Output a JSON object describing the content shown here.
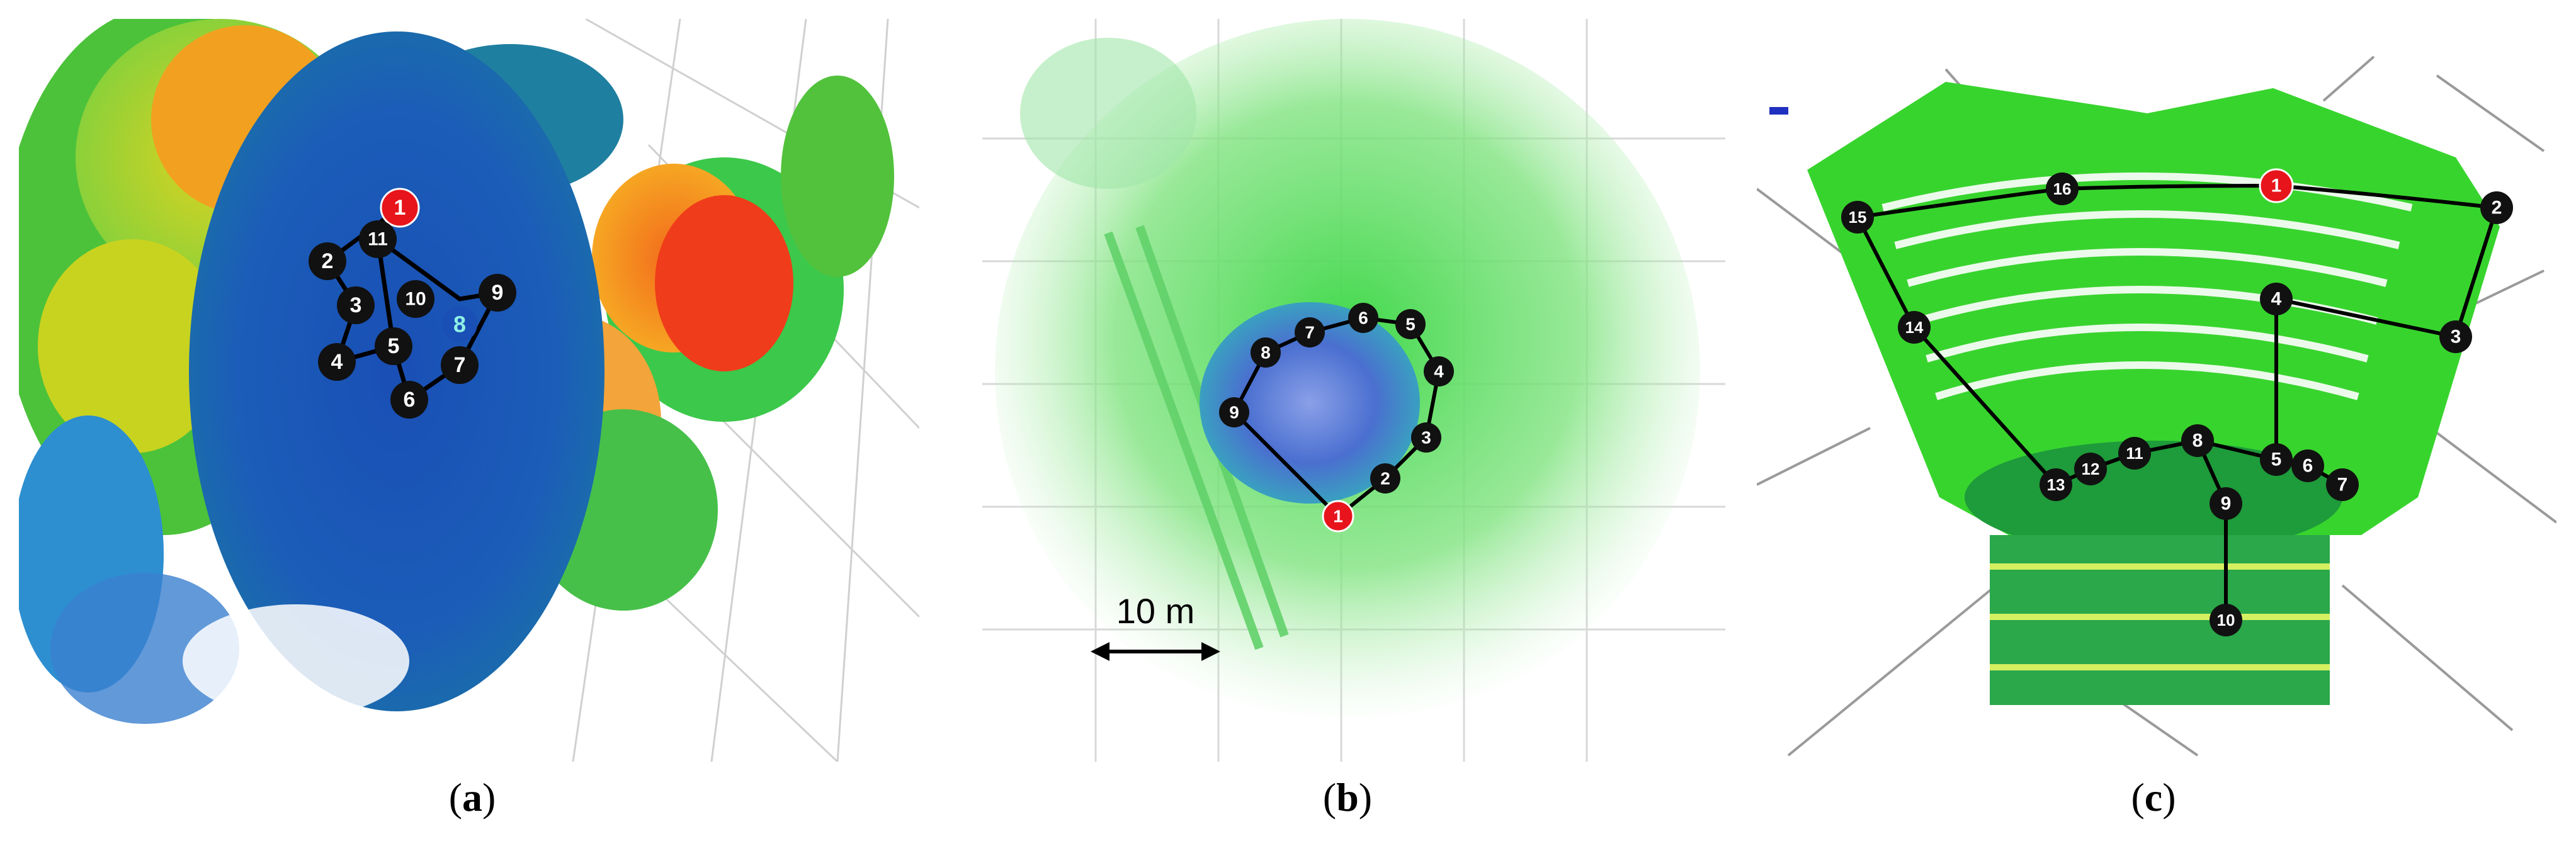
{
  "panels": [
    {
      "id": "a",
      "caption": "a",
      "route_nodes": [
        "1",
        "2",
        "3",
        "4",
        "5",
        "6",
        "7",
        "8",
        "9",
        "10",
        "11"
      ],
      "start_node": "1",
      "highlight_node": "8",
      "colors": {
        "start": "#e8141b",
        "node": "#111111",
        "highlight_text": "#8ff0e6",
        "ground": "#1a53b8"
      }
    },
    {
      "id": "b",
      "caption": "b",
      "route_nodes": [
        "1",
        "2",
        "3",
        "4",
        "5",
        "6",
        "7",
        "8",
        "9"
      ],
      "start_node": "1",
      "scale_label": "10 m",
      "colors": {
        "start": "#e8141b",
        "node": "#111111",
        "pool": "#4a6fd0",
        "cloud": "#5fe06a"
      }
    },
    {
      "id": "c",
      "caption": "c",
      "route_nodes": [
        "1",
        "2",
        "3",
        "4",
        "5",
        "6",
        "7",
        "8",
        "9",
        "10",
        "11",
        "12",
        "13",
        "14",
        "15",
        "16"
      ],
      "start_node": "1",
      "colors": {
        "start": "#e8141b",
        "node": "#111111",
        "seats": "#36d12c",
        "floor": "#1e9b3a"
      }
    }
  ]
}
